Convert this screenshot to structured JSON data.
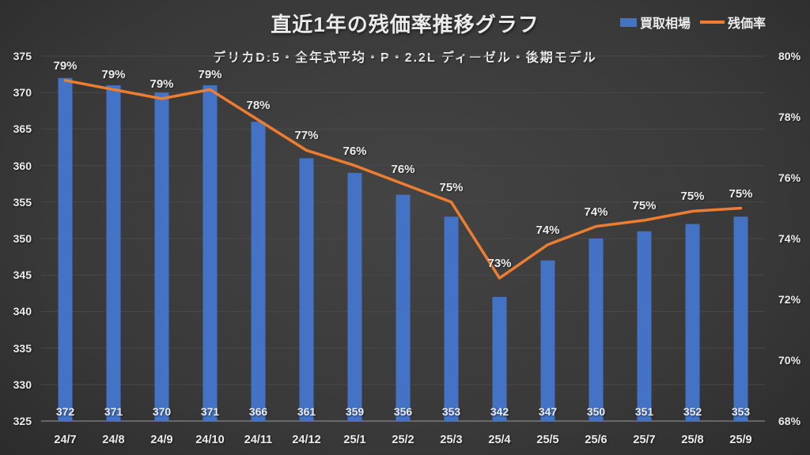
{
  "title": "直近1年の残価率推移グラフ",
  "subtitle": "デリカD:5・全年式平均・P・2.2L ディーゼル・後期モデル",
  "legend": {
    "bar_label": "買取相場",
    "line_label": "残価率"
  },
  "colors": {
    "bar": "#4472C4",
    "line": "#ED7D31",
    "text": "#ececec",
    "gridline": "#494949",
    "axis_line": "#9b9b9b"
  },
  "chart_data": {
    "type": "combo-bar-line",
    "title": "直近1年の残価率推移グラフ",
    "subtitle": "デリカD:5・全年式平均・P・2.2L ディーゼル・後期モデル",
    "categories": [
      "24/7",
      "24/8",
      "24/9",
      "24/10",
      "24/11",
      "24/12",
      "25/1",
      "25/2",
      "25/3",
      "25/4",
      "25/5",
      "25/6",
      "25/7",
      "25/8",
      "25/9"
    ],
    "series": [
      {
        "name": "買取相場",
        "type": "bar",
        "axis": "left",
        "values": [
          372,
          371,
          370,
          371,
          366,
          361,
          359,
          356,
          353,
          342,
          347,
          350,
          351,
          352,
          353
        ],
        "data_labels": [
          "372",
          "371",
          "370",
          "371",
          "366",
          "361",
          "359",
          "356",
          "353",
          "342",
          "347",
          "350",
          "351",
          "352",
          "353"
        ]
      },
      {
        "name": "残価率",
        "type": "line",
        "axis": "right",
        "values_pct_est": [
          79.2,
          78.9,
          78.6,
          78.9,
          77.9,
          76.9,
          76.4,
          75.8,
          75.2,
          72.7,
          73.8,
          74.4,
          74.6,
          74.9,
          75.0
        ],
        "data_labels": [
          "79%",
          "79%",
          "79%",
          "79%",
          "78%",
          "77%",
          "76%",
          "76%",
          "75%",
          "73%",
          "74%",
          "74%",
          "75%",
          "75%",
          "75%"
        ]
      }
    ],
    "left_axis": {
      "min": 325,
      "max": 375,
      "step": 5,
      "tick_labels": [
        "325",
        "330",
        "335",
        "340",
        "345",
        "350",
        "355",
        "360",
        "365",
        "370",
        "375"
      ]
    },
    "right_axis": {
      "min": 68,
      "max": 80,
      "step": 2,
      "tick_labels": [
        "68%",
        "70%",
        "72%",
        "74%",
        "76%",
        "78%",
        "80%"
      ]
    },
    "grid": true,
    "legend_position": "top-right"
  }
}
